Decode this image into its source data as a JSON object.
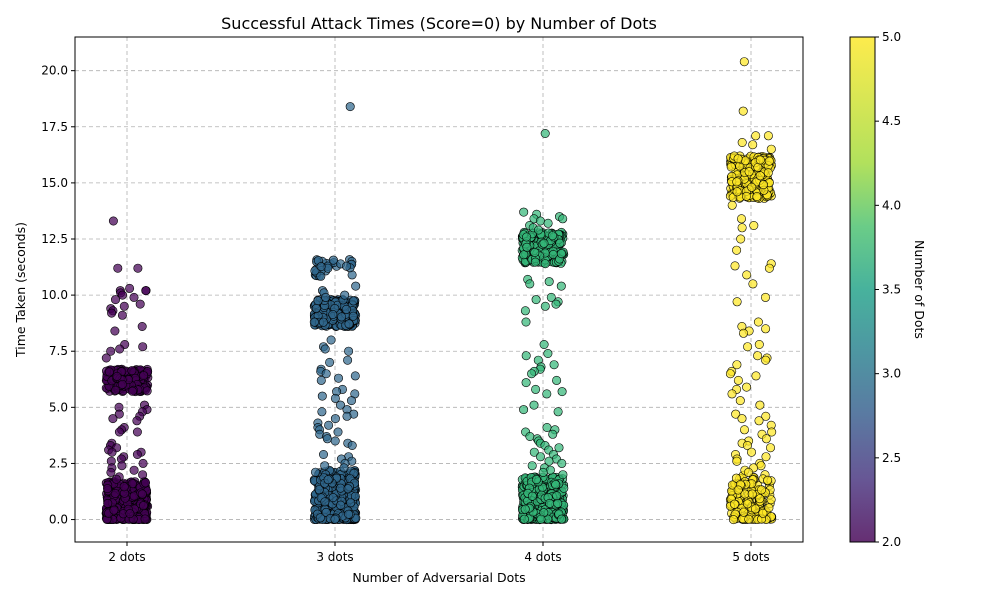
{
  "chart_data": {
    "type": "scatter",
    "title": "Successful Attack Times (Score=0) by Number of Dots",
    "xlabel": "Number of Adversarial Dots",
    "ylabel": "Time Taken (seconds)",
    "categories": [
      "2 dots",
      "3 dots",
      "4 dots",
      "5 dots"
    ],
    "category_values": [
      2,
      3,
      4,
      5
    ],
    "ylim": [
      -1,
      21.5
    ],
    "yticks": [
      "0.0",
      "2.5",
      "5.0",
      "7.5",
      "10.0",
      "12.5",
      "15.0",
      "17.5",
      "20.0"
    ],
    "grid": true,
    "jitter": "horizontal, about ±0.1 category widths",
    "colorbar": {
      "label": "Number of Dots",
      "colormap": "viridis",
      "range": [
        2.0,
        5.0
      ],
      "ticks": [
        "2.0",
        "2.5",
        "3.0",
        "3.5",
        "4.0",
        "4.5",
        "5.0"
      ]
    },
    "series": [
      {
        "category": "2 dots",
        "color": "#440154",
        "clusters": [
          {
            "y_range": [
              0,
              1.7
            ],
            "count": 520
          },
          {
            "y_range": [
              5.7,
              6.7
            ],
            "count": 230
          }
        ],
        "values": [
          13.3,
          11.2,
          11.2,
          10.3,
          10.2,
          10.2,
          10.2,
          10.1,
          10.0,
          9.9,
          9.8,
          9.6,
          9.5,
          9.4,
          9.3,
          9.2,
          9.1,
          8.6,
          8.4,
          7.8,
          7.7,
          7.6,
          7.5,
          7.2,
          5.1,
          5.0,
          4.9,
          4.8,
          4.7,
          4.6,
          4.5,
          4.4,
          4.1,
          4.0,
          3.9,
          3.9,
          3.4,
          3.3,
          3.2,
          3.1,
          3.0,
          3.0,
          2.9,
          2.8,
          2.7,
          2.6,
          2.5,
          2.4,
          2.3,
          2.2,
          2.1,
          2.0,
          1.9,
          1.8
        ]
      },
      {
        "category": "3 dots",
        "color": "#31688e",
        "clusters": [
          {
            "y_range": [
              0,
              2.2
            ],
            "count": 470
          },
          {
            "y_range": [
              8.6,
              9.8
            ],
            "count": 260
          },
          {
            "y_range": [
              10.8,
              11.6
            ],
            "count": 30
          }
        ],
        "values": [
          18.4,
          10.4,
          10.2,
          10.1,
          10.0,
          9.9,
          8.0,
          7.7,
          7.6,
          7.5,
          7.1,
          7.0,
          6.7,
          6.6,
          6.5,
          6.4,
          6.3,
          6.2,
          5.8,
          5.7,
          5.6,
          5.5,
          5.4,
          5.3,
          5.1,
          4.9,
          4.8,
          4.7,
          4.6,
          4.5,
          4.3,
          4.2,
          4.1,
          4.0,
          3.9,
          3.8,
          3.7,
          3.6,
          3.5,
          3.4,
          3.3,
          2.9,
          2.8,
          2.7,
          2.6,
          2.5,
          2.4,
          2.3
        ]
      },
      {
        "category": "4 dots",
        "color": "#35b779",
        "clusters": [
          {
            "y_range": [
              0,
              1.9
            ],
            "count": 430
          },
          {
            "y_range": [
              11.4,
              12.8
            ],
            "count": 230
          }
        ],
        "values": [
          17.2,
          13.7,
          13.6,
          13.5,
          13.4,
          13.4,
          13.3,
          13.2,
          13.1,
          13.0,
          12.9,
          10.7,
          10.6,
          10.5,
          10.4,
          9.9,
          9.8,
          9.7,
          9.6,
          9.5,
          9.3,
          8.8,
          7.8,
          7.4,
          7.3,
          7.1,
          6.9,
          6.8,
          6.7,
          6.6,
          6.5,
          6.2,
          6.1,
          5.8,
          5.7,
          5.6,
          5.1,
          4.9,
          4.8,
          4.1,
          4.0,
          3.9,
          3.8,
          3.7,
          3.6,
          3.5,
          3.4,
          3.3,
          3.2,
          3.1,
          3.0,
          2.9,
          2.8,
          2.7,
          2.6,
          2.5,
          2.4,
          2.3,
          2.2,
          2.1,
          2.0
        ]
      },
      {
        "category": "5 dots",
        "color": "#fde725",
        "clusters": [
          {
            "y_range": [
              0,
              2.0
            ],
            "count": 160
          },
          {
            "y_range": [
              14.3,
              16.2
            ],
            "count": 240
          }
        ],
        "values": [
          20.4,
          18.2,
          17.1,
          17.1,
          16.8,
          16.7,
          16.5,
          14.0,
          13.4,
          13.1,
          13.0,
          12.5,
          12.0,
          11.4,
          11.3,
          11.2,
          10.9,
          10.5,
          9.9,
          9.7,
          8.8,
          8.6,
          8.5,
          8.4,
          8.3,
          7.8,
          7.7,
          7.3,
          7.2,
          7.1,
          6.9,
          6.6,
          6.5,
          6.4,
          6.2,
          5.9,
          5.8,
          5.6,
          5.3,
          5.1,
          4.7,
          4.6,
          4.5,
          4.4,
          4.2,
          4.0,
          3.9,
          3.8,
          3.6,
          3.5,
          3.4,
          3.3,
          3.2,
          3.0,
          2.9,
          2.8,
          2.7,
          2.6,
          2.5,
          2.4,
          2.3,
          2.2,
          2.1
        ]
      }
    ]
  }
}
